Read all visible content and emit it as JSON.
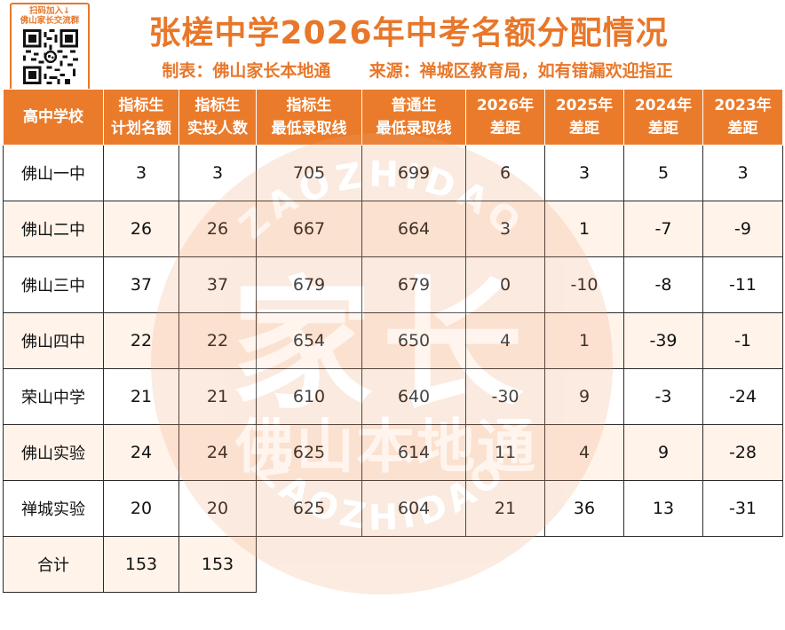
{
  "qr": {
    "caption_line1": "扫码加入↓",
    "caption_line2": "佛山家长交流群"
  },
  "title": "张槎中学2026年中考名额分配情况",
  "subtitle": {
    "made_by": "制表：佛山家长本地通",
    "source": "来源：禅城区教育局，如有错漏欢迎指正"
  },
  "watermark": {
    "big_text": "家长",
    "small_text": "佛山本地通",
    "ring_text": "ZAOZHIDAO"
  },
  "colors": {
    "accent": "#ea7b2b",
    "title": "#e8772a",
    "alt_row": "#fff3ea"
  },
  "table": {
    "headers": [
      [
        "高中学校",
        ""
      ],
      [
        "指标生",
        "计划名额"
      ],
      [
        "指标生",
        "实投人数"
      ],
      [
        "指标生",
        "最低录取线"
      ],
      [
        "普通生",
        "最低录取线"
      ],
      [
        "2026年",
        "差距"
      ],
      [
        "2025年",
        "差距"
      ],
      [
        "2024年",
        "差距"
      ],
      [
        "2023年",
        "差距"
      ]
    ],
    "rows": [
      [
        "佛山一中",
        "3",
        "3",
        "705",
        "699",
        "6",
        "3",
        "5",
        "3"
      ],
      [
        "佛山二中",
        "26",
        "26",
        "667",
        "664",
        "3",
        "1",
        "-7",
        "-9"
      ],
      [
        "佛山三中",
        "37",
        "37",
        "679",
        "679",
        "0",
        "-10",
        "-8",
        "-11"
      ],
      [
        "佛山四中",
        "22",
        "22",
        "654",
        "650",
        "4",
        "1",
        "-39",
        "-1"
      ],
      [
        "荣山中学",
        "21",
        "21",
        "610",
        "640",
        "-30",
        "9",
        "-3",
        "-24"
      ],
      [
        "佛山实验",
        "24",
        "24",
        "625",
        "614",
        "11",
        "4",
        "9",
        "-28"
      ],
      [
        "禅城实验",
        "20",
        "20",
        "625",
        "604",
        "21",
        "36",
        "13",
        "-31"
      ]
    ],
    "total": [
      "合计",
      "153",
      "153"
    ]
  }
}
